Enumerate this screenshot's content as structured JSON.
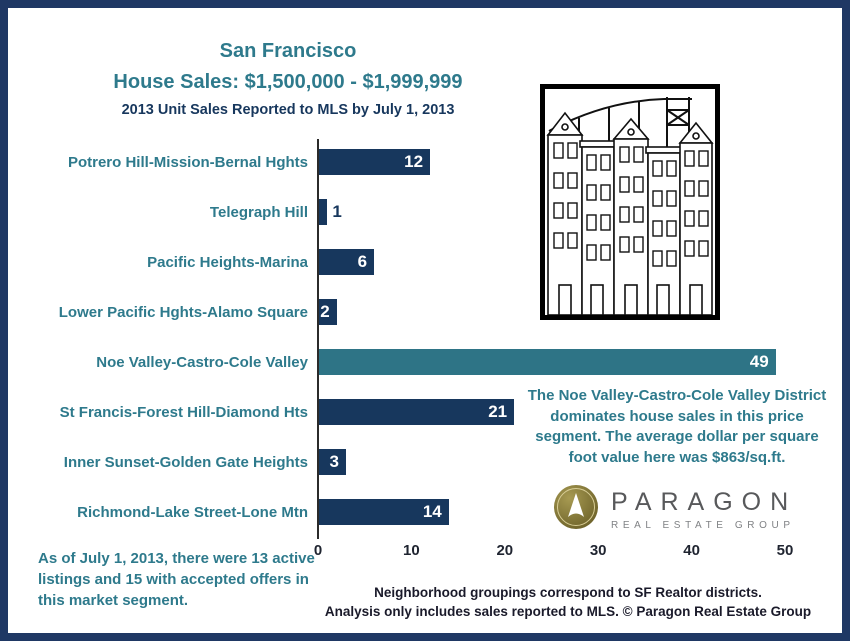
{
  "header": {
    "title_line1": "San Francisco",
    "title_line2": "House Sales: $1,500,000 - $1,999,999",
    "subtitle": "2013 Unit Sales Reported to MLS by July 1, 2013"
  },
  "chart_data": {
    "type": "bar",
    "orientation": "horizontal",
    "categories": [
      "Potrero Hill-Mission-Bernal Hghts",
      "Telegraph Hill",
      "Pacific Heights-Marina",
      "Lower Pacific Hghts-Alamo Square",
      "Noe Valley-Castro-Cole Valley",
      "St Francis-Forest Hill-Diamond Hts",
      "Inner Sunset-Golden Gate Heights",
      "Richmond-Lake Street-Lone Mtn"
    ],
    "values": [
      12,
      1,
      6,
      2,
      49,
      21,
      3,
      14
    ],
    "highlight_index": 4,
    "xlim": [
      0,
      50
    ],
    "xticks": [
      0,
      10,
      20,
      30,
      40,
      50
    ],
    "grid": false,
    "legend": "none"
  },
  "annotation": {
    "text": "The Noe Valley-Castro-Cole Valley District dominates house sales in this price segment. The average dollar per square foot value here was $863/sq.ft."
  },
  "footnotes": {
    "left": "As of July 1, 2013, there were 13 active listings and 15 with accepted offers in this market segment.",
    "center_line1": "Neighborhood groupings  correspond to SF Realtor districts.",
    "center_line2": "Analysis only includes sales reported to MLS. © Paragon Real Estate Group"
  },
  "logo": {
    "name": "PARAGON",
    "tagline": "REAL ESTATE GROUP"
  },
  "colors": {
    "navy_bar": "#17375D",
    "teal_bar": "#2E7486",
    "teal_text": "#2E7A8C",
    "frame": "#1F3864",
    "axis_text": "#1F2430",
    "logo_gold": "#7A6F33",
    "logo_text_gray": "#58595B"
  }
}
